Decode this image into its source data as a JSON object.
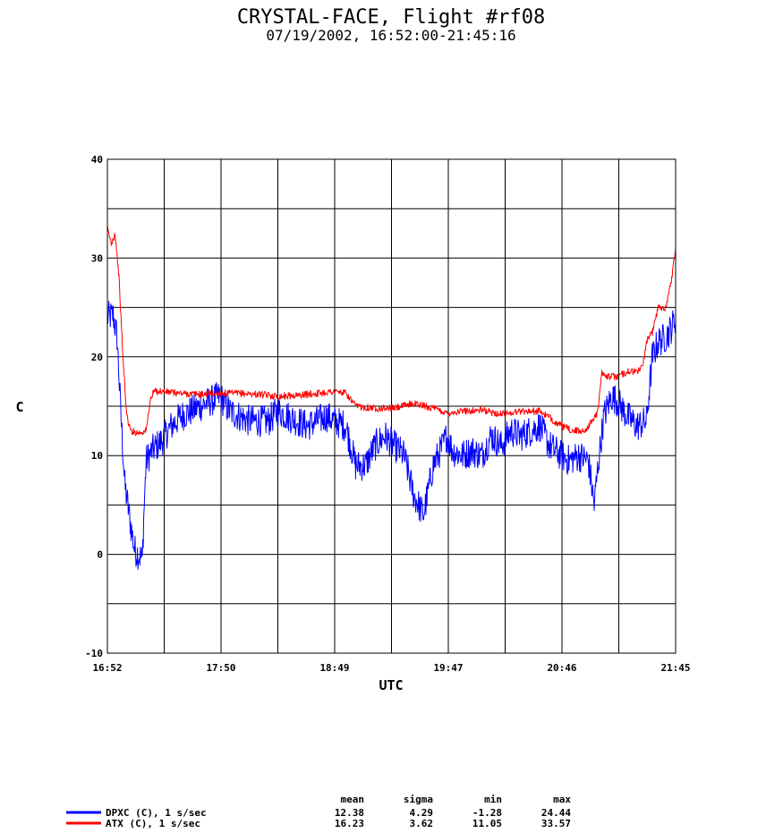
{
  "chart_data": {
    "type": "line",
    "title": "CRYSTAL-FACE, Flight #rf08",
    "subtitle": "07/19/2002, 16:52:00-21:45:16",
    "xlabel": "UTC",
    "ylabel": "C",
    "ylim": [
      -10,
      40
    ],
    "yticks": [
      "-10",
      "0",
      "10",
      "20",
      "30",
      "40"
    ],
    "xlim": [
      "16:52",
      "21:45"
    ],
    "xtick_labels": [
      "16:52",
      "17:50",
      "18:49",
      "19:47",
      "20:46",
      "21:45"
    ],
    "grid": true,
    "legend_position": "bottom-left",
    "stats_headers": [
      "mean",
      "sigma",
      "min",
      "max"
    ],
    "series": [
      {
        "name": "DPXC (C), 1 s/sec",
        "color": "#0000ff",
        "stats": [
          "12.38",
          "4.29",
          "-1.28",
          "24.44"
        ],
        "points": [
          [
            "16:52",
            24.0
          ],
          [
            "16:55",
            24.2
          ],
          [
            "16:57",
            22.0
          ],
          [
            "16:59",
            14.0
          ],
          [
            "17:01",
            7.0
          ],
          [
            "17:04",
            3.0
          ],
          [
            "17:06",
            0.5
          ],
          [
            "17:08",
            0.0
          ],
          [
            "17:10",
            -0.5
          ],
          [
            "17:11",
            5.0
          ],
          [
            "17:12",
            9.5
          ],
          [
            "17:15",
            10.5
          ],
          [
            "17:20",
            11.5
          ],
          [
            "17:25",
            13.0
          ],
          [
            "17:30",
            14.0
          ],
          [
            "17:35",
            14.5
          ],
          [
            "17:40",
            15.0
          ],
          [
            "17:45",
            15.5
          ],
          [
            "17:50",
            16.0
          ],
          [
            "17:55",
            14.5
          ],
          [
            "18:00",
            14.0
          ],
          [
            "18:05",
            13.5
          ],
          [
            "18:10",
            13.5
          ],
          [
            "18:15",
            13.5
          ],
          [
            "18:20",
            14.5
          ],
          [
            "18:25",
            14.0
          ],
          [
            "18:30",
            13.5
          ],
          [
            "18:35",
            13.0
          ],
          [
            "18:40",
            13.5
          ],
          [
            "18:45",
            14.0
          ],
          [
            "18:49",
            13.5
          ],
          [
            "18:55",
            13.0
          ],
          [
            "19:00",
            9.0
          ],
          [
            "19:05",
            9.0
          ],
          [
            "19:10",
            11.0
          ],
          [
            "19:15",
            12.0
          ],
          [
            "19:20",
            11.0
          ],
          [
            "19:25",
            10.0
          ],
          [
            "19:30",
            6.0
          ],
          [
            "19:35",
            4.0
          ],
          [
            "19:40",
            9.0
          ],
          [
            "19:45",
            11.0
          ],
          [
            "19:47",
            12.0
          ],
          [
            "19:50",
            10.5
          ],
          [
            "19:55",
            10.0
          ],
          [
            "20:00",
            10.5
          ],
          [
            "20:05",
            10.0
          ],
          [
            "20:10",
            12.0
          ],
          [
            "20:15",
            11.0
          ],
          [
            "20:20",
            12.5
          ],
          [
            "20:25",
            12.0
          ],
          [
            "20:30",
            12.5
          ],
          [
            "20:35",
            13.0
          ],
          [
            "20:40",
            11.0
          ],
          [
            "20:46",
            10.0
          ],
          [
            "20:50",
            9.5
          ],
          [
            "20:55",
            10.0
          ],
          [
            "21:00",
            9.5
          ],
          [
            "21:03",
            5.0
          ],
          [
            "21:05",
            9.0
          ],
          [
            "21:08",
            14.0
          ],
          [
            "21:12",
            16.0
          ],
          [
            "21:15",
            15.5
          ],
          [
            "21:20",
            14.0
          ],
          [
            "21:25",
            13.0
          ],
          [
            "21:30",
            13.5
          ],
          [
            "21:33",
            20.0
          ],
          [
            "21:36",
            21.5
          ],
          [
            "21:40",
            22.0
          ],
          [
            "21:43",
            23.0
          ],
          [
            "21:45",
            24.0
          ]
        ]
      },
      {
        "name": "ATX (C), 1 s/sec",
        "color": "#ff0000",
        "stats": [
          "16.23",
          "3.62",
          "11.05",
          "33.57"
        ],
        "points": [
          [
            "16:52",
            33.0
          ],
          [
            "16:54",
            31.5
          ],
          [
            "16:56",
            32.5
          ],
          [
            "16:58",
            28.0
          ],
          [
            "17:00",
            20.0
          ],
          [
            "17:02",
            14.0
          ],
          [
            "17:04",
            12.5
          ],
          [
            "17:08",
            12.3
          ],
          [
            "17:12",
            12.5
          ],
          [
            "17:14",
            15.5
          ],
          [
            "17:16",
            16.5
          ],
          [
            "17:20",
            16.5
          ],
          [
            "17:30",
            16.3
          ],
          [
            "17:40",
            16.2
          ],
          [
            "17:50",
            16.3
          ],
          [
            "18:00",
            16.3
          ],
          [
            "18:10",
            16.2
          ],
          [
            "18:20",
            16.0
          ],
          [
            "18:30",
            16.1
          ],
          [
            "18:40",
            16.3
          ],
          [
            "18:49",
            16.5
          ],
          [
            "18:55",
            16.3
          ],
          [
            "19:00",
            15.0
          ],
          [
            "19:10",
            14.8
          ],
          [
            "19:20",
            14.8
          ],
          [
            "19:30",
            15.3
          ],
          [
            "19:40",
            14.8
          ],
          [
            "19:47",
            14.3
          ],
          [
            "19:55",
            14.5
          ],
          [
            "20:05",
            14.6
          ],
          [
            "20:15",
            14.2
          ],
          [
            "20:25",
            14.5
          ],
          [
            "20:35",
            14.5
          ],
          [
            "20:46",
            13.0
          ],
          [
            "20:52",
            12.5
          ],
          [
            "20:58",
            12.5
          ],
          [
            "21:02",
            13.5
          ],
          [
            "21:05",
            14.5
          ],
          [
            "21:07",
            18.5
          ],
          [
            "21:10",
            18.0
          ],
          [
            "21:15",
            18.0
          ],
          [
            "21:20",
            18.5
          ],
          [
            "21:25",
            18.5
          ],
          [
            "21:28",
            19.0
          ],
          [
            "21:30",
            21.5
          ],
          [
            "21:33",
            22.5
          ],
          [
            "21:36",
            25.0
          ],
          [
            "21:40",
            25.0
          ],
          [
            "21:43",
            28.0
          ],
          [
            "21:45",
            31.0
          ]
        ]
      }
    ]
  }
}
